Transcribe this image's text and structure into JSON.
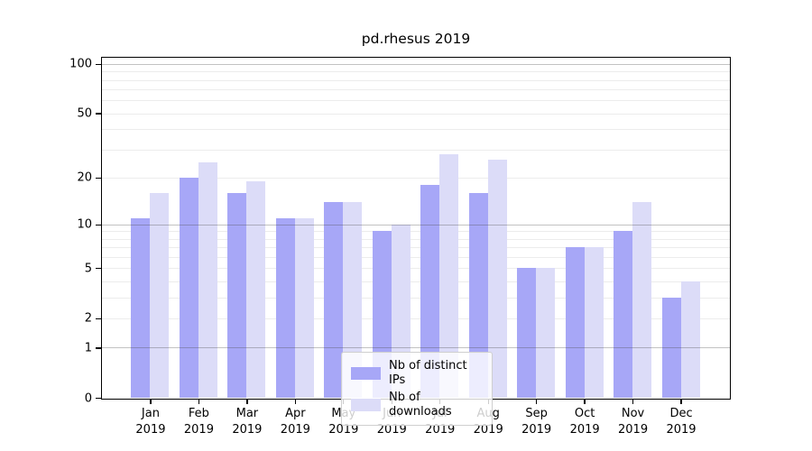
{
  "window": {
    "background": "#ffffff"
  },
  "chart_data": {
    "type": "bar",
    "title": "pd.rhesus 2019",
    "categories": [
      "Jan 2019",
      "Feb 2019",
      "Mar 2019",
      "Apr 2019",
      "May 2019",
      "Jun 2019",
      "Jul 2019",
      "Aug 2019",
      "Sep 2019",
      "Oct 2019",
      "Nov 2019",
      "Dec 2019"
    ],
    "series": [
      {
        "name": "Nb of distinct IPs",
        "color": "#a7a7f7",
        "values": [
          11,
          20,
          16,
          11,
          14,
          9,
          18,
          16,
          5,
          7,
          9,
          3
        ]
      },
      {
        "name": "Nb of downloads",
        "color": "#dcdcf8",
        "values": [
          16,
          25,
          19,
          11,
          14,
          10,
          28,
          26,
          5,
          7,
          14,
          4
        ]
      }
    ],
    "y_axis": {
      "scale": "log1p",
      "ylim": [
        0,
        109
      ],
      "ticks": [
        100,
        50,
        20,
        10,
        5,
        2,
        1,
        0
      ],
      "major_gridlines": [
        100,
        10,
        1
      ],
      "minor_gridlines": [
        90,
        80,
        70,
        60,
        50,
        40,
        30,
        20,
        9,
        8,
        7,
        6,
        5,
        4,
        3,
        2
      ]
    },
    "xlabel": "",
    "ylabel": "",
    "grid": true,
    "legend": {
      "position": "bottom-center",
      "items": [
        "Nb of distinct IPs",
        "Nb of downloads"
      ]
    }
  }
}
